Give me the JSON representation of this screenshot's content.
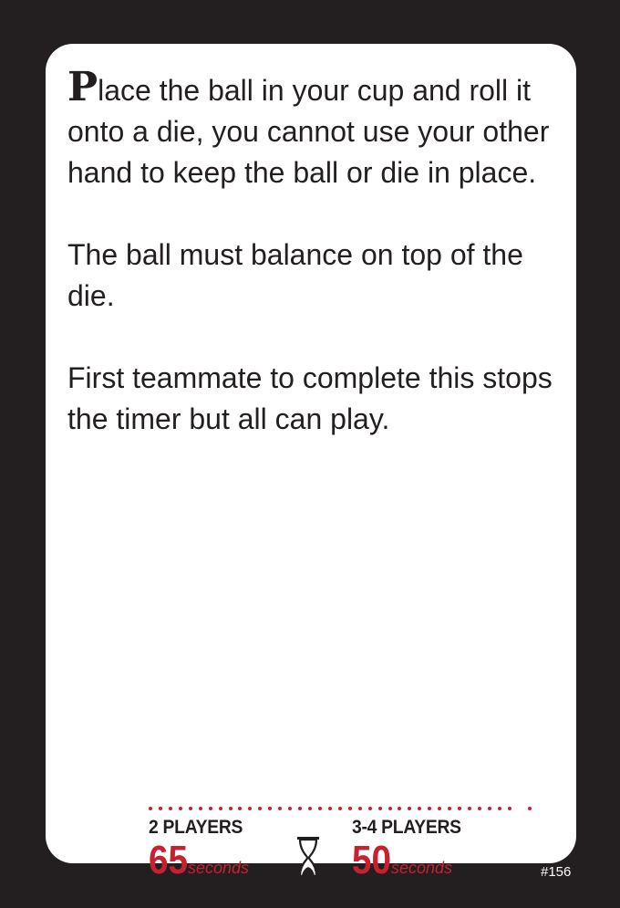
{
  "card": {
    "dropcap": "P",
    "paragraph1_rest": "lace the ball in your cup and roll it onto a die, you cannot use your other hand to keep the ball or die in place.",
    "paragraph2": "The ball must balance on top of the die.",
    "paragraph3": "First teammate to complete this stops the timer but all can play."
  },
  "timing": {
    "two_players": {
      "label": "2 PLAYERS",
      "value": "65",
      "unit": "seconds"
    },
    "three_four_players": {
      "label": "3-4 PLAYERS",
      "value": "50",
      "unit": "seconds"
    },
    "icon": "hourglass-icon"
  },
  "card_number": "#156",
  "colors": {
    "background": "#231f20",
    "card": "#ffffff",
    "accent_red": "#c8202f",
    "text": "#231f20"
  }
}
